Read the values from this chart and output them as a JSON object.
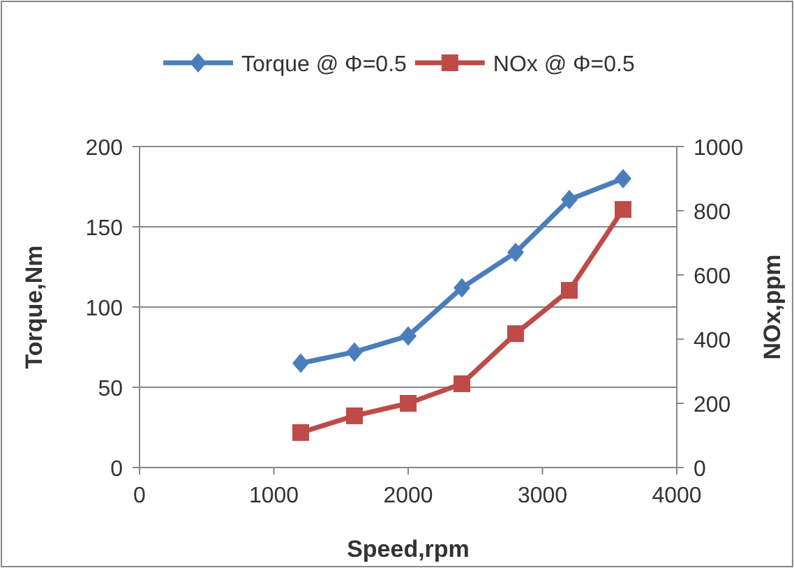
{
  "chart_data": {
    "type": "line",
    "xlabel": "Speed,rpm",
    "ylabel": "Torque,Nm",
    "y2label": "NOx,ppm",
    "x": [
      1200,
      1600,
      2000,
      2400,
      2800,
      3200,
      3600
    ],
    "xlim": [
      0,
      4000
    ],
    "xticks": [
      0,
      1000,
      2000,
      3000,
      4000
    ],
    "ylim": [
      0,
      200
    ],
    "yticks": [
      0,
      50,
      100,
      150,
      200
    ],
    "y2lim": [
      0,
      1000
    ],
    "y2ticks": [
      0,
      200,
      400,
      600,
      800,
      1000
    ],
    "grid": "y",
    "legend": "top",
    "series": [
      {
        "name": "Torque @ Φ=0.5",
        "color": "#4a7ebb",
        "marker": "diamond",
        "values": [
          65,
          72,
          82,
          112,
          134,
          167,
          180
        ]
      },
      {
        "name": "NOx @ Φ=0.5",
        "color": "#be4b48",
        "marker": "square",
        "axis": "y2",
        "values": [
          109,
          161,
          200,
          261,
          417,
          552,
          804
        ]
      }
    ]
  }
}
